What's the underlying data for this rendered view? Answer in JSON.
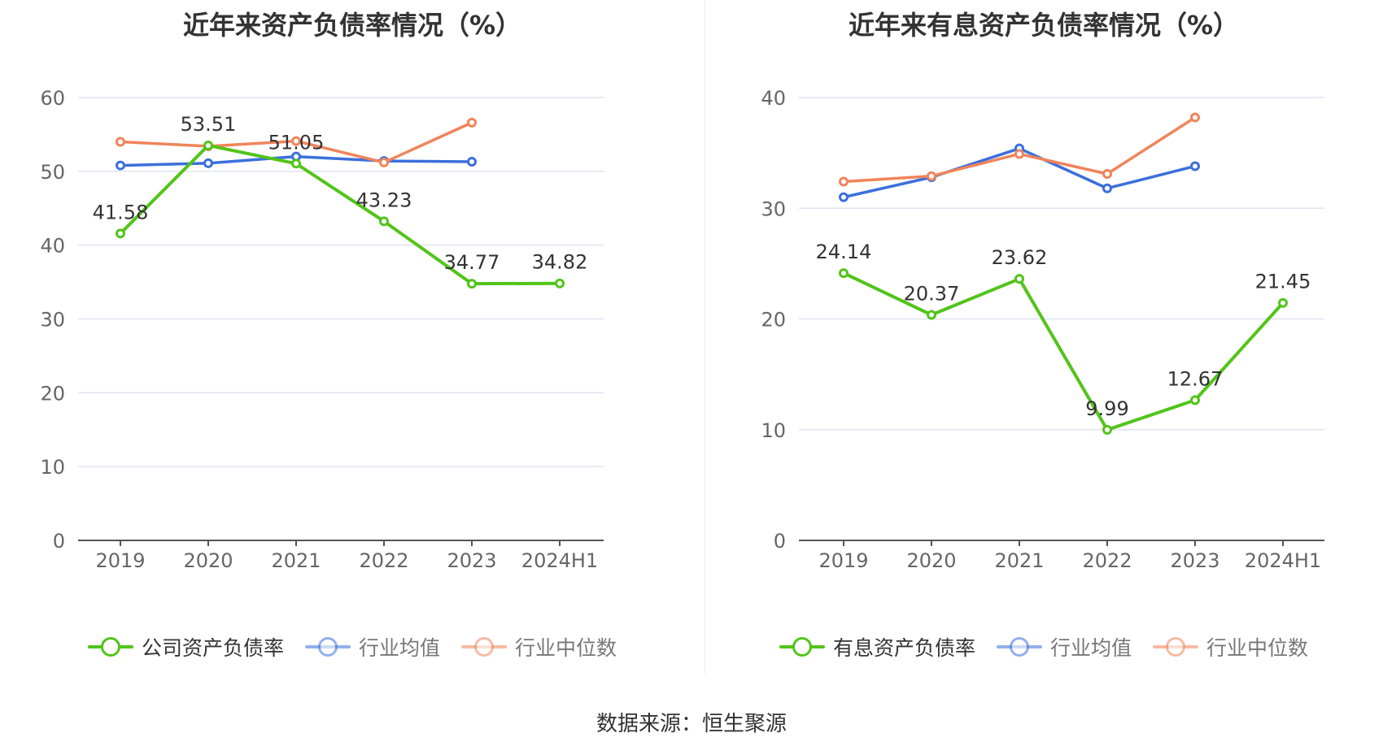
{
  "source_text": "数据来源：恒生聚源",
  "chart_data": [
    {
      "type": "line",
      "title": "近年来资产负债率情况（%）",
      "categories": [
        "2019",
        "2020",
        "2021",
        "2022",
        "2023",
        "2024H1"
      ],
      "ylim": [
        0,
        60
      ],
      "yticks": [
        0,
        10,
        20,
        30,
        40,
        50,
        60
      ],
      "grid": true,
      "legend_position": "bottom",
      "series": [
        {
          "name": "公司资产负债率",
          "color": "#52c41a",
          "values": [
            41.58,
            53.51,
            51.05,
            43.23,
            34.77,
            34.82
          ],
          "labels": [
            "41.58",
            "53.51",
            "51.05",
            "43.23",
            "34.77",
            "34.82"
          ],
          "emphasis": true
        },
        {
          "name": "行业均值",
          "color": "#3b6fdc",
          "values": [
            50.8,
            51.1,
            52.0,
            51.4,
            51.3,
            null
          ]
        },
        {
          "name": "行业中位数",
          "color": "#f0845a",
          "values": [
            54.0,
            53.4,
            54.1,
            51.2,
            56.6,
            null
          ]
        }
      ]
    },
    {
      "type": "line",
      "title": "近年来有息资产负债率情况（%）",
      "categories": [
        "2019",
        "2020",
        "2021",
        "2022",
        "2023",
        "2024H1"
      ],
      "ylim": [
        0,
        40
      ],
      "yticks": [
        0,
        10,
        20,
        30,
        40
      ],
      "grid": true,
      "legend_position": "bottom",
      "series": [
        {
          "name": "有息资产负债率",
          "color": "#52c41a",
          "values": [
            24.14,
            20.37,
            23.62,
            9.99,
            12.67,
            21.45
          ],
          "labels": [
            "24.14",
            "20.37",
            "23.62",
            "9.99",
            "12.67",
            "21.45"
          ],
          "emphasis": true
        },
        {
          "name": "行业均值",
          "color": "#3b6fdc",
          "values": [
            31.0,
            32.8,
            35.4,
            31.8,
            33.8,
            null
          ]
        },
        {
          "name": "行业中位数",
          "color": "#f0845a",
          "values": [
            32.4,
            32.9,
            34.9,
            33.1,
            38.2,
            null
          ]
        }
      ]
    }
  ]
}
